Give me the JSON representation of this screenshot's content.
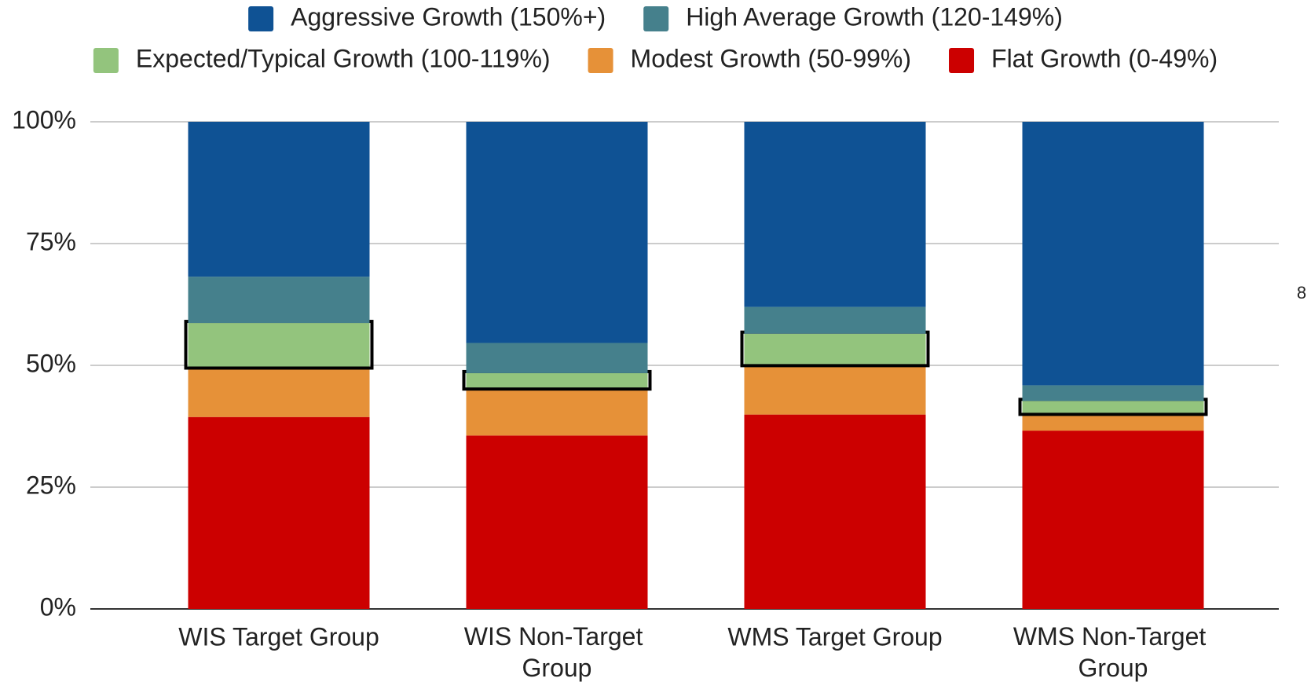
{
  "chart_data": {
    "type": "stacked_bar",
    "categories": [
      "WIS Target Group",
      "WIS Non-Target Group",
      "WMS Target Group",
      "WMS Non-Target Group"
    ],
    "series": [
      {
        "name": "Flat Growth (0-49%)",
        "color": "#cc0000",
        "values": [
          39.4,
          35.6,
          39.9,
          36.6
        ]
      },
      {
        "name": "Modest Growth (50-99%)",
        "color": "#e69138",
        "values": [
          10.2,
          9.7,
          10.2,
          3.5
        ]
      },
      {
        "name": "Expected/Typical Growth (100-119%)",
        "color": "#93c47d",
        "values": [
          9.1,
          3.1,
          6.4,
          2.6
        ]
      },
      {
        "name": "High Average Growth (120-149%)",
        "color": "#45808c",
        "values": [
          9.5,
          6.2,
          5.5,
          3.2
        ]
      },
      {
        "name": "Aggressive Growth (150%+)",
        "color": "#0f5294",
        "values": [
          31.8,
          45.4,
          38.0,
          54.1
        ]
      }
    ],
    "ylim": [
      0,
      100
    ],
    "yticks": [
      {
        "value": 0,
        "label": "0%"
      },
      {
        "value": 25,
        "label": "25%"
      },
      {
        "value": 50,
        "label": "50%"
      },
      {
        "value": 75,
        "label": "75%"
      },
      {
        "value": 100,
        "label": "100%"
      }
    ],
    "grid": true,
    "legend": "top",
    "highlighted_series": 2,
    "annotation": "8"
  }
}
